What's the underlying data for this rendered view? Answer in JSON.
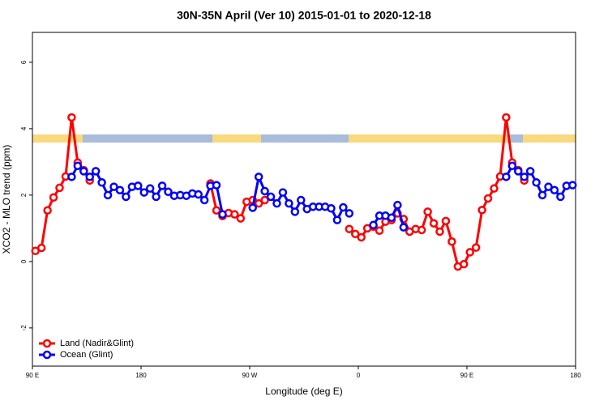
{
  "chart_data": {
    "type": "line",
    "title": "30N-35N April (Ver 10)   2015-01-01 to 2020-12-18",
    "x_label": "Longitude (deg E)",
    "y_label": "XCO2 - MLO trend (ppm)",
    "xlim": [
      90,
      540
    ],
    "ylim": [
      -3.15,
      6.9
    ],
    "xticks": [
      {
        "value": 90,
        "label": "90 E"
      },
      180,
      {
        "value": 270,
        "label": "90 W"
      },
      {
        "value": 360,
        "label": "0"
      },
      {
        "value": 450,
        "label": "90 E"
      },
      {
        "value": 540,
        "label": "180"
      }
    ],
    "yticks": [
      -2,
      0,
      2,
      4,
      6
    ],
    "legend": "bottomleft",
    "x": [
      92.5,
      97.5,
      102.5,
      107.5,
      112.5,
      117.5,
      122.5,
      127.5,
      132.5,
      137.5,
      142.5,
      147.5,
      152.5,
      157.5,
      162.5,
      167.5,
      172.5,
      177.5,
      182.5,
      187.5,
      192.5,
      197.5,
      202.5,
      207.5,
      212.5,
      217.5,
      222.5,
      227.5,
      232.5,
      237.5,
      242.5,
      247.5,
      252.5,
      257.5,
      262.5,
      267.5,
      272.5,
      277.5,
      282.5,
      287.5,
      292.5,
      297.5,
      302.5,
      307.5,
      312.5,
      317.5,
      322.5,
      327.5,
      332.5,
      337.5,
      342.5,
      347.5,
      352.5,
      357.5,
      362.5,
      367.5,
      372.5,
      377.5,
      382.5,
      387.5,
      392.5,
      397.5,
      402.5,
      407.5,
      412.5,
      417.5,
      422.5,
      427.5,
      432.5,
      437.5,
      442.5,
      447.5,
      452.5,
      457.5,
      462.5,
      467.5,
      472.5,
      477.5,
      482.5,
      487.5,
      492.5,
      497.5,
      502.5,
      507.5,
      512.5,
      517.5,
      522.5,
      527.5,
      532.5,
      537.5
    ],
    "series": [
      {
        "name": "Land (Nadir&Glint)",
        "color": "#ff0000",
        "values": [
          0.32,
          0.41,
          1.54,
          1.93,
          2.22,
          2.56,
          4.34,
          2.98,
          2.75,
          2.44,
          null,
          null,
          null,
          null,
          null,
          null,
          null,
          null,
          null,
          null,
          null,
          null,
          null,
          null,
          null,
          null,
          null,
          null,
          null,
          2.35,
          1.54,
          1.37,
          1.46,
          1.42,
          1.3,
          1.8,
          1.85,
          1.75,
          1.85,
          null,
          null,
          null,
          null,
          null,
          null,
          null,
          null,
          null,
          null,
          null,
          null,
          null,
          0.98,
          0.83,
          0.73,
          1.0,
          1.05,
          0.93,
          1.2,
          1.25,
          1.45,
          1.28,
          0.9,
          0.98,
          0.95,
          1.5,
          1.15,
          0.9,
          1.22,
          0.6,
          -0.15,
          -0.08,
          0.28,
          0.42,
          1.55,
          1.9,
          2.2,
          2.56,
          4.34,
          2.98,
          2.75,
          2.44,
          null,
          null,
          null,
          null,
          null,
          null,
          null,
          null
        ]
      },
      {
        "name": "Ocean (Glint)",
        "color": "#0000ff",
        "values": [
          null,
          null,
          null,
          null,
          null,
          null,
          2.55,
          2.88,
          2.72,
          2.55,
          2.72,
          2.38,
          2.0,
          2.25,
          2.15,
          1.95,
          2.25,
          2.28,
          2.08,
          2.2,
          1.95,
          2.28,
          2.1,
          1.98,
          2.0,
          1.98,
          2.05,
          2.02,
          1.85,
          2.28,
          2.3,
          1.42,
          null,
          null,
          null,
          null,
          1.62,
          2.55,
          2.12,
          1.95,
          1.75,
          2.08,
          1.75,
          1.5,
          1.85,
          1.58,
          1.65,
          1.65,
          1.65,
          1.6,
          1.25,
          1.63,
          1.45,
          null,
          null,
          null,
          1.1,
          1.38,
          1.38,
          1.32,
          1.7,
          1.03,
          null,
          null,
          null,
          null,
          null,
          null,
          null,
          null,
          null,
          null,
          null,
          null,
          null,
          null,
          null,
          null,
          2.55,
          2.88,
          2.72,
          2.55,
          2.72,
          2.38,
          2.0,
          2.25,
          2.15,
          1.95,
          2.28,
          2.3
        ]
      }
    ]
  }
}
